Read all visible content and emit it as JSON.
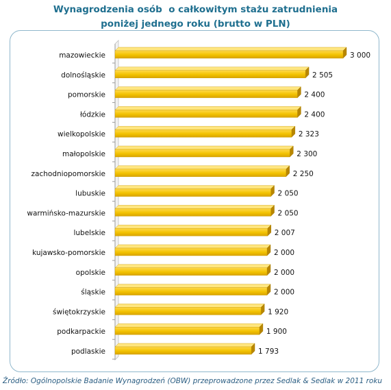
{
  "chart_data": {
    "type": "bar",
    "orientation": "horizontal",
    "title_lines": [
      "Wynagrodzenia osób  o całkowitym stażu zatrudnienia",
      "poniżej jednego roku (brutto w PLN)"
    ],
    "categories": [
      "mazowieckie",
      "dolnośląskie",
      "pomorskie",
      "łódzkie",
      "wielkopolskie",
      "małopolskie",
      "zachodniopomorskie",
      "lubuskie",
      "warmińsko-mazurskie",
      "lubelskie",
      "kujawsko-pomorskie",
      "opolskie",
      "śląskie",
      "świętokrzyskie",
      "podkarpackie",
      "podlaskie"
    ],
    "values": [
      3000,
      2505,
      2400,
      2400,
      2323,
      2300,
      2250,
      2050,
      2050,
      2007,
      2000,
      2000,
      2000,
      1920,
      1900,
      1793
    ],
    "value_labels": [
      "3 000",
      "2 505",
      "2 400",
      "2 400",
      "2 323",
      "2 300",
      "2 250",
      "2 050",
      "2 050",
      "2 007",
      "2 000",
      "2 000",
      "2 000",
      "1 920",
      "1 900",
      "1 793"
    ],
    "xlim": [
      0,
      3000
    ],
    "grid": false,
    "legend": "none",
    "bar_color": "#f2c200"
  },
  "source": "Źródło: Ogólnopolskie Badanie Wynagrodzeń (OBW) przeprowadzone przez Sedlak & Sedlak w 2011 roku"
}
